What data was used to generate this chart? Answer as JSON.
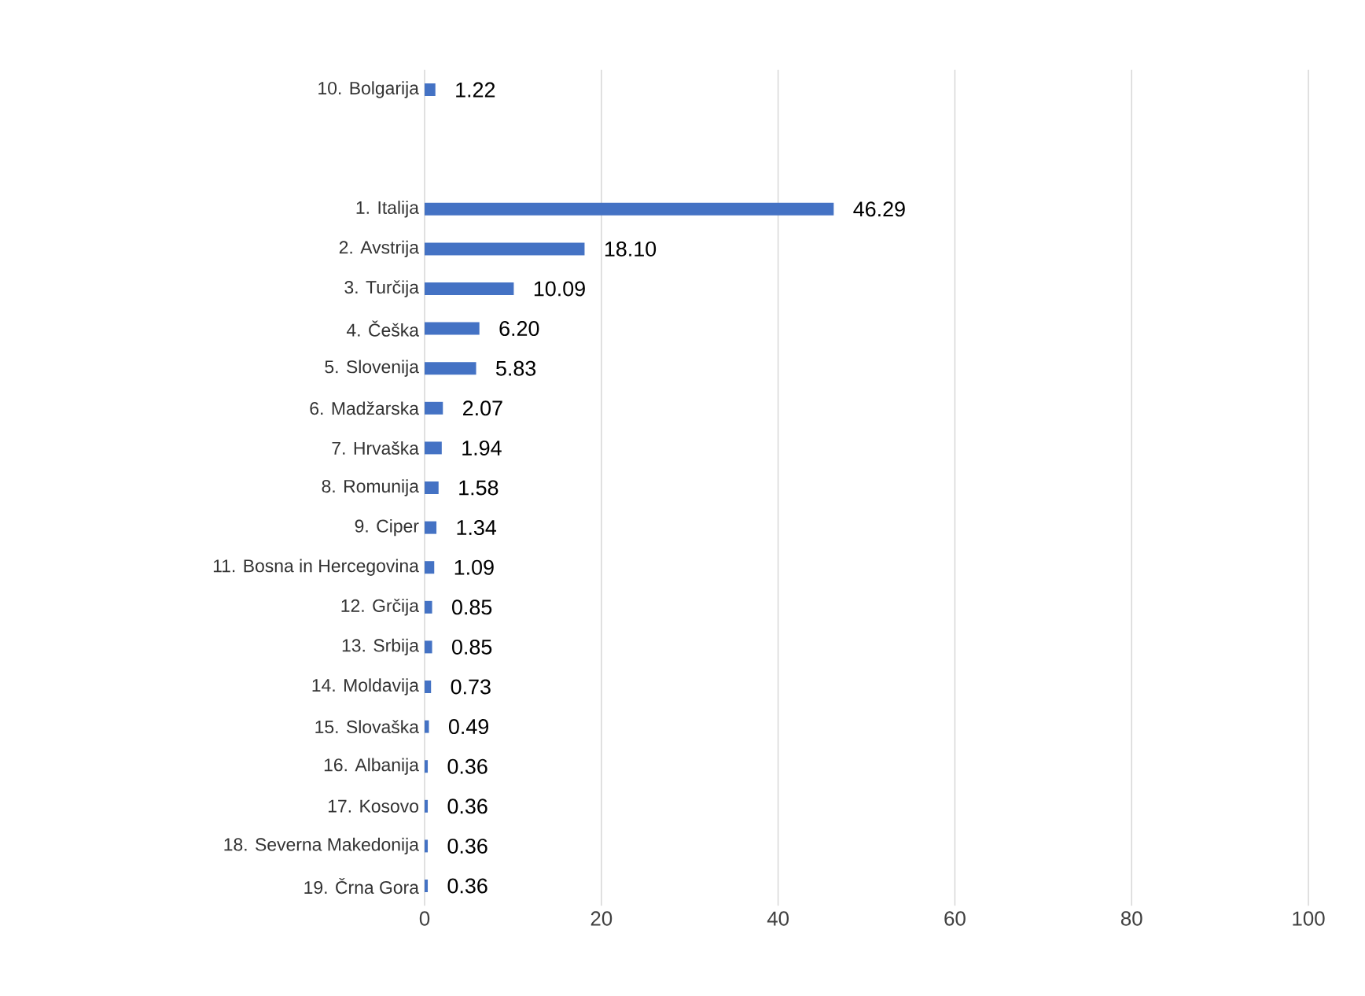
{
  "chart_data": {
    "type": "bar",
    "orientation": "horizontal",
    "categories": [
      "10. Bolgarija",
      null,
      null,
      "1. Italija",
      "2. Avstrija",
      "3. Turčija",
      "4. Češka",
      "5. Slovenija",
      "6. Madžarska",
      "7. Hrvaška",
      "8. Romunija",
      "9. Ciper",
      "11. Bosna in Hercegovina",
      "12. Grčija",
      "13. Srbija",
      "14. Moldavija",
      "15. Slovaška",
      "16. Albanija",
      "17. Kosovo",
      "18. Severna Makedonija",
      "19. Črna Gora"
    ],
    "values": [
      1.22,
      null,
      null,
      46.29,
      18.1,
      10.09,
      6.2,
      5.83,
      2.07,
      1.94,
      1.58,
      1.34,
      1.09,
      0.85,
      0.85,
      0.73,
      0.49,
      0.36,
      0.36,
      0.36,
      0.36
    ],
    "value_labels": [
      "1.22",
      null,
      null,
      "46.29",
      "18.10",
      "10.09",
      "6.20",
      "5.83",
      "2.07",
      "1.94",
      "1.58",
      "1.34",
      "1.09",
      "0.85",
      "0.85",
      "0.73",
      "0.49",
      "0.36",
      "0.36",
      "0.36",
      "0.36"
    ],
    "color": "#4472c4",
    "xlim": [
      0,
      100
    ],
    "xticks": [
      0,
      20,
      40,
      60,
      80,
      100
    ],
    "grid": "x"
  }
}
